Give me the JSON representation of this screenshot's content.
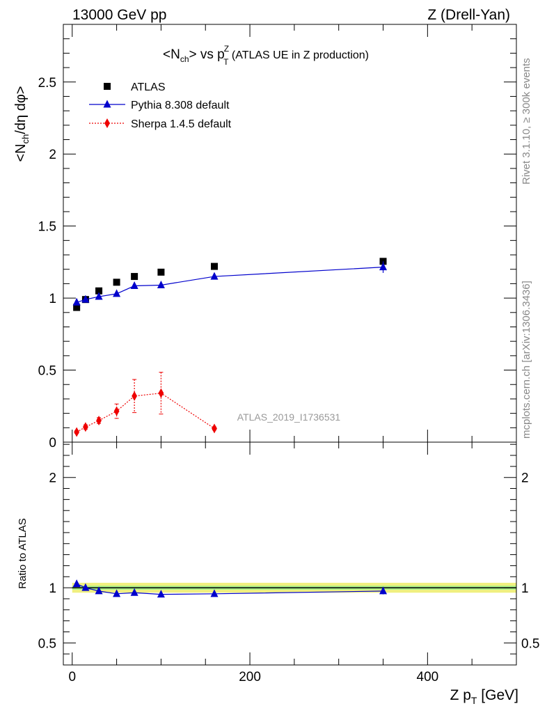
{
  "header": {
    "left": "13000 GeV pp",
    "right": "Z (Drell-Yan)"
  },
  "side_labels": {
    "rivet": "Rivet 3.1.10, ≥ 300k events",
    "source": "mcplots.cern.ch [arXiv:1306.3436]"
  },
  "chart_data": [
    {
      "panel": "main",
      "type": "scatter",
      "title": "<N_ch> vs p_T^Z (ATLAS UE in Z production)",
      "title_parts": {
        "pre": "<N",
        "sub1": "ch",
        "mid": "> vs p",
        "sup": "Z",
        "sub2": "T",
        "post": " (ATLAS UE in Z production)"
      },
      "ylabel": "<N_ch/dη dφ>",
      "ylabel_parts": {
        "pre": "<N",
        "sub": "ch",
        "post": "/dη dφ>"
      },
      "xlim": [
        -10,
        500
      ],
      "ylim": [
        0,
        2.9
      ],
      "yticks": [
        0,
        0.5,
        1,
        1.5,
        2,
        2.5
      ],
      "ytick_labels": [
        "0",
        "0.5",
        "1",
        "1.5",
        "2",
        "2.5"
      ],
      "watermark": "ATLAS_2019_I1736531",
      "legend": [
        "ATLAS",
        "Pythia 8.308 default",
        "Sherpa 1.4.5 default"
      ],
      "series": [
        {
          "name": "ATLAS",
          "color": "#000000",
          "marker": "square",
          "line": "none",
          "x": [
            5,
            15,
            30,
            50,
            70,
            100,
            160,
            350
          ],
          "y": [
            0.935,
            0.99,
            1.05,
            1.11,
            1.15,
            1.18,
            1.22,
            1.255
          ],
          "yerr": [
            0.01,
            0.01,
            0.01,
            0.01,
            0.01,
            0.01,
            0.01,
            0.015
          ]
        },
        {
          "name": "Pythia 8.308 default",
          "color": "#0000cc",
          "marker": "triangle",
          "line": "solid",
          "x": [
            5,
            15,
            30,
            50,
            70,
            100,
            160,
            350
          ],
          "y": [
            0.97,
            0.99,
            1.01,
            1.03,
            1.085,
            1.09,
            1.15,
            1.215
          ],
          "yerr": [
            0.01,
            0.01,
            0.01,
            0.01,
            0.01,
            0.01,
            0.01,
            0.04
          ]
        },
        {
          "name": "Sherpa 1.4.5 default",
          "color": "#ee0000",
          "marker": "diamond",
          "line": "dotted",
          "x": [
            5,
            15,
            30,
            50,
            70,
            100,
            160
          ],
          "y": [
            0.07,
            0.105,
            0.15,
            0.215,
            0.32,
            0.34,
            0.095
          ],
          "yerr": [
            0.01,
            0.015,
            0.02,
            0.05,
            0.115,
            0.145,
            0.01
          ]
        }
      ]
    },
    {
      "panel": "ratio",
      "type": "line",
      "ylabel": "Ratio to ATLAS",
      "xlabel": "Z p_T [GeV]",
      "xlabel_parts": {
        "pre": "Z p",
        "sub": "T",
        "post": " [GeV]"
      },
      "xlim": [
        -10,
        500
      ],
      "ylim": [
        0.3,
        2.32
      ],
      "xticks": [
        0,
        200,
        400
      ],
      "xtick_labels": [
        "0",
        "200",
        "400"
      ],
      "yticks": [
        0.5,
        1,
        2
      ],
      "ytick_labels": [
        "0.5",
        "1",
        "2"
      ],
      "band_colors": {
        "outer": "#f0f080",
        "inner": "#a8f088"
      },
      "band_outer": 0.045,
      "band_inner": 0.018,
      "series": [
        {
          "name": "Pythia 8.308 default",
          "color": "#0000cc",
          "marker": "triangle",
          "line": "solid",
          "x": [
            5,
            15,
            30,
            50,
            70,
            100,
            160,
            350
          ],
          "y": [
            1.035,
            1.0,
            0.97,
            0.945,
            0.955,
            0.94,
            0.945,
            0.97
          ],
          "yerr": [
            0.01,
            0.01,
            0.01,
            0.01,
            0.01,
            0.01,
            0.01,
            0.03
          ]
        }
      ]
    }
  ]
}
